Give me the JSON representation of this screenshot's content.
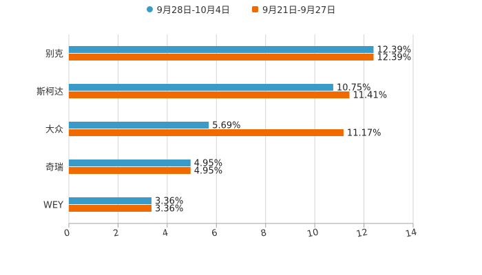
{
  "chart_data": {
    "type": "bar",
    "orientation": "horizontal",
    "title": "",
    "xlabel": "",
    "ylabel": "",
    "categories": [
      "别克",
      "斯柯达",
      "大众",
      "奇瑞",
      "WEY"
    ],
    "series": [
      {
        "name": "9月28日-10月4日",
        "color": "#3a9bc9",
        "values": [
          12.39,
          10.75,
          5.69,
          4.95,
          3.36
        ],
        "labels": [
          "12.39%",
          "10.75%",
          "5.69%",
          "4.95%",
          "3.36%"
        ]
      },
      {
        "name": "9月21日-9月27日",
        "color": "#f06a00",
        "values": [
          12.39,
          11.41,
          11.17,
          4.95,
          3.36
        ],
        "labels": [
          "12.39%",
          "11.41%",
          "11.17%",
          "4.95%",
          "3.36%"
        ]
      }
    ],
    "xlim": [
      0,
      14
    ],
    "xticks": [
      "0",
      "2",
      "4",
      "6",
      "8",
      "10",
      "12",
      "14"
    ],
    "grid": true,
    "legend_position": "top-center"
  }
}
